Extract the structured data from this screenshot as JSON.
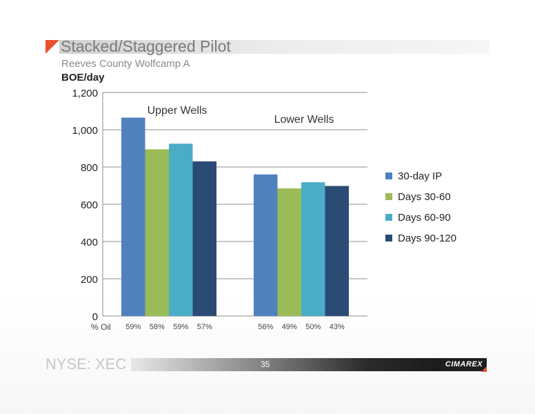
{
  "slide": {
    "title": "Stacked/Staggered Pilot",
    "subtitle": "Reeves County Wolfcamp A",
    "footer_left": "NYSE: XEC",
    "page_number": "35",
    "logo_text": "CIMAREX"
  },
  "colors": {
    "accent": "#e8512e",
    "series": [
      "#4f81bd",
      "#9bbb59",
      "#4bacc6",
      "#2a4b74"
    ]
  },
  "chart_data": {
    "type": "bar",
    "title": "Stacked/Staggered Pilot",
    "subtitle": "Reeves County Wolfcamp A",
    "ylabel": "BOE/day",
    "ylim": [
      0,
      1200
    ],
    "yticks": [
      0,
      200,
      400,
      600,
      800,
      "1,000",
      "1,200"
    ],
    "ytick_values": [
      0,
      200,
      400,
      600,
      800,
      1000,
      1200
    ],
    "grid": true,
    "legend_position": "right",
    "categories": [
      "Upper Wells",
      "Lower Wells"
    ],
    "series": [
      {
        "name": "30-day IP",
        "values": [
          1065,
          760
        ]
      },
      {
        "name": "Days 30-60",
        "values": [
          895,
          685
        ]
      },
      {
        "name": "Days 60-90",
        "values": [
          925,
          718
        ]
      },
      {
        "name": "Days 90-120",
        "values": [
          830,
          698
        ]
      }
    ],
    "oil_label": "% Oil",
    "oil_percent": [
      [
        "59%",
        "58%",
        "59%",
        "57%"
      ],
      [
        "56%",
        "49%",
        "50%",
        "43%"
      ]
    ]
  }
}
